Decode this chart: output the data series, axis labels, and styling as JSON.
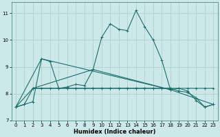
{
  "xlabel": "Humidex (Indice chaleur)",
  "bg_color": "#cce8e8",
  "grid_color": "#aacccc",
  "line_color": "#1a6e6a",
  "xlim": [
    -0.5,
    23.5
  ],
  "ylim": [
    7.0,
    11.4
  ],
  "yticks": [
    7,
    8,
    9,
    10,
    11
  ],
  "xticks": [
    0,
    1,
    2,
    3,
    4,
    5,
    6,
    7,
    8,
    9,
    10,
    11,
    12,
    13,
    14,
    15,
    16,
    17,
    18,
    19,
    20,
    21,
    22,
    23
  ],
  "lines": [
    {
      "x": [
        0,
        1,
        2,
        3,
        4,
        5,
        6,
        7,
        8,
        9,
        10,
        11,
        12,
        13,
        14,
        15,
        16,
        17,
        18,
        19,
        20,
        21,
        22,
        23
      ],
      "y": [
        7.5,
        7.6,
        7.7,
        9.3,
        9.2,
        8.2,
        8.25,
        8.35,
        8.3,
        8.9,
        10.1,
        10.6,
        10.4,
        10.35,
        11.1,
        10.5,
        10.0,
        9.25,
        8.15,
        8.2,
        8.1,
        7.75,
        7.5,
        7.6
      ]
    },
    {
      "x": [
        0,
        2,
        5,
        6,
        7,
        8,
        9,
        10,
        11,
        12,
        13,
        14,
        15,
        16,
        17,
        18,
        19,
        20,
        21,
        22,
        23
      ],
      "y": [
        7.5,
        8.2,
        8.2,
        8.2,
        8.2,
        8.2,
        8.2,
        8.2,
        8.2,
        8.2,
        8.2,
        8.2,
        8.2,
        8.2,
        8.2,
        8.2,
        8.2,
        8.2,
        8.2,
        8.2,
        8.2
      ]
    },
    {
      "comment": "diagonal line from (0,7.5) through (3,9.3) to (18,8.15)",
      "x": [
        0,
        3,
        18
      ],
      "y": [
        7.5,
        9.3,
        8.15
      ]
    },
    {
      "comment": "line from (2,8.2) through (9,8.9) to (18,8.15) to (23,7.6)",
      "x": [
        2,
        9,
        18,
        23
      ],
      "y": [
        8.2,
        8.9,
        8.15,
        7.6
      ]
    },
    {
      "comment": "bottom curve from (0,7.5) to (2,8.2) to (23,7.6)",
      "x": [
        0,
        1,
        2,
        3,
        4,
        5,
        6,
        7,
        8,
        9,
        10,
        11,
        12,
        13,
        14,
        15,
        16,
        17,
        18,
        19,
        20,
        21,
        22,
        23
      ],
      "y": [
        7.5,
        7.6,
        8.2,
        8.2,
        8.2,
        8.2,
        8.2,
        8.2,
        8.2,
        8.2,
        8.2,
        8.2,
        8.2,
        8.2,
        8.2,
        8.2,
        8.2,
        8.2,
        8.2,
        8.1,
        8.05,
        7.85,
        7.5,
        7.6
      ]
    }
  ]
}
